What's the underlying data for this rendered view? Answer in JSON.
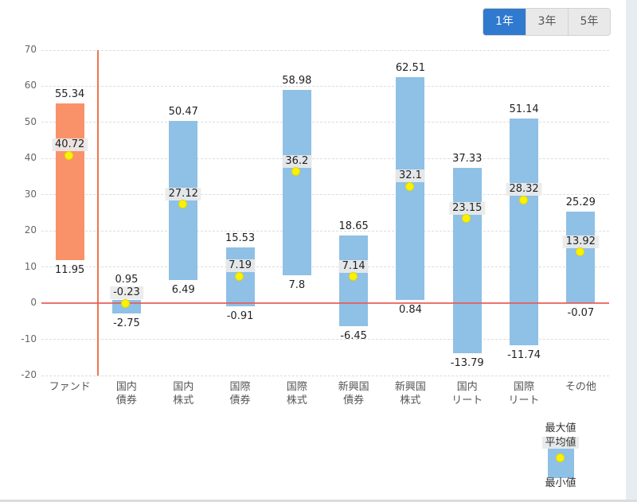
{
  "tabs": {
    "items": [
      {
        "id": "1y",
        "label": "1年",
        "selected": true
      },
      {
        "id": "3y",
        "label": "3年",
        "selected": false
      },
      {
        "id": "5y",
        "label": "5年",
        "selected": false
      }
    ]
  },
  "legend": {
    "max_label": "最大値",
    "avg_label": "平均値",
    "min_label": "最小値"
  },
  "chart_data": {
    "type": "bar",
    "subtype": "floating-range-bars-with-average-dot",
    "title": "",
    "xlabel": "",
    "ylabel": "",
    "categories": [
      "ファンド",
      "国内債券",
      "国内株式",
      "国際債券",
      "国際株式",
      "新興国債券",
      "新興国株式",
      "国内リート",
      "国際リート",
      "その他"
    ],
    "category_label_lines": [
      [
        "ファンド"
      ],
      [
        "国内",
        "債券"
      ],
      [
        "国内",
        "株式"
      ],
      [
        "国際",
        "債券"
      ],
      [
        "国際",
        "株式"
      ],
      [
        "新興国",
        "債券"
      ],
      [
        "新興国",
        "株式"
      ],
      [
        "国内",
        "リート"
      ],
      [
        "国際",
        "リート"
      ],
      [
        "その他"
      ]
    ],
    "series": [
      {
        "name": "最大値",
        "role": "max",
        "values": [
          55.34,
          0.95,
          50.47,
          15.53,
          58.98,
          18.65,
          62.51,
          37.33,
          51.14,
          25.29
        ]
      },
      {
        "name": "平均値",
        "role": "avg",
        "values": [
          40.72,
          -0.23,
          27.12,
          7.19,
          36.2,
          7.14,
          32.1,
          23.15,
          28.32,
          13.92
        ]
      },
      {
        "name": "最小値",
        "role": "min",
        "values": [
          11.95,
          -2.75,
          6.49,
          -0.91,
          7.8,
          -6.45,
          0.84,
          -13.79,
          -11.74,
          -0.07
        ]
      }
    ],
    "ylim": [
      -20,
      70
    ],
    "ytick_step": 10,
    "grid": "horizontal-dashed",
    "legend_position": "bottom-right",
    "highlight_category_index": 0,
    "colors": {
      "fund_bar": "#F99268",
      "asset_bar": "#8FC0E6",
      "avg_dot": "#FAF104",
      "zero_line": "#E85B55",
      "separator_line": "#F0744E",
      "gridline": "#DDDDDD",
      "selected_tab": "#2F79CE"
    }
  }
}
